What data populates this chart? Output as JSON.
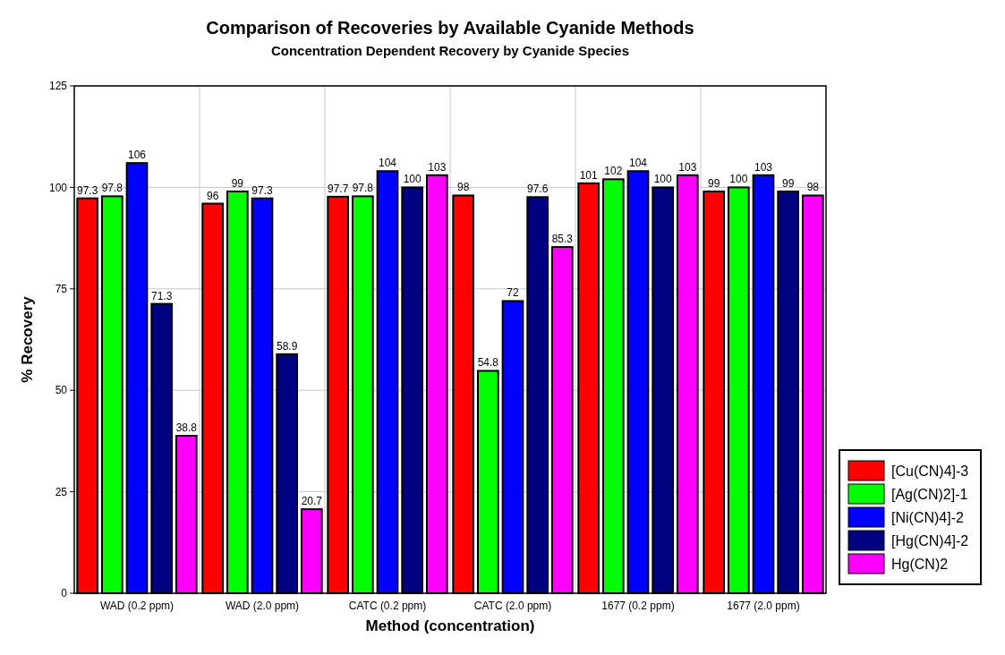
{
  "chart_data": {
    "type": "bar",
    "title": "Comparison of Recoveries by Available Cyanide Methods",
    "subtitle": "Concentration Dependent Recovery by Cyanide Species",
    "xlabel": "Method (concentration)",
    "ylabel": "% Recovery",
    "categories": [
      "WAD (0.2 ppm)",
      "WAD (2.0 ppm)",
      "CATC (0.2 ppm)",
      "CATC (2.0 ppm)",
      "1677 (0.2 ppm)",
      "1677 (2.0 ppm)"
    ],
    "series": [
      {
        "name": "[Cu(CN)4]-3",
        "color": "#ff0000",
        "values": [
          97.3,
          96,
          97.7,
          98,
          101,
          99
        ]
      },
      {
        "name": "[Ag(CN)2]-1",
        "color": "#00ff00",
        "values": [
          97.8,
          99,
          97.8,
          54.8,
          102,
          100
        ]
      },
      {
        "name": "[Ni(CN)4]-2",
        "color": "#0000ff",
        "values": [
          106,
          97.3,
          104,
          72,
          104,
          103
        ]
      },
      {
        "name": "[Hg(CN)4]-2",
        "color": "#000080",
        "values": [
          71.3,
          58.9,
          100,
          97.6,
          100,
          99
        ]
      },
      {
        "name": "Hg(CN)2",
        "color": "#ff00ff",
        "values": [
          38.8,
          20.7,
          103,
          85.3,
          103,
          98
        ]
      }
    ],
    "ylim": [
      0,
      125
    ],
    "yticks": [
      0,
      25,
      50,
      75,
      100,
      125
    ],
    "grid": true,
    "legend": "right",
    "data_labels": true
  }
}
